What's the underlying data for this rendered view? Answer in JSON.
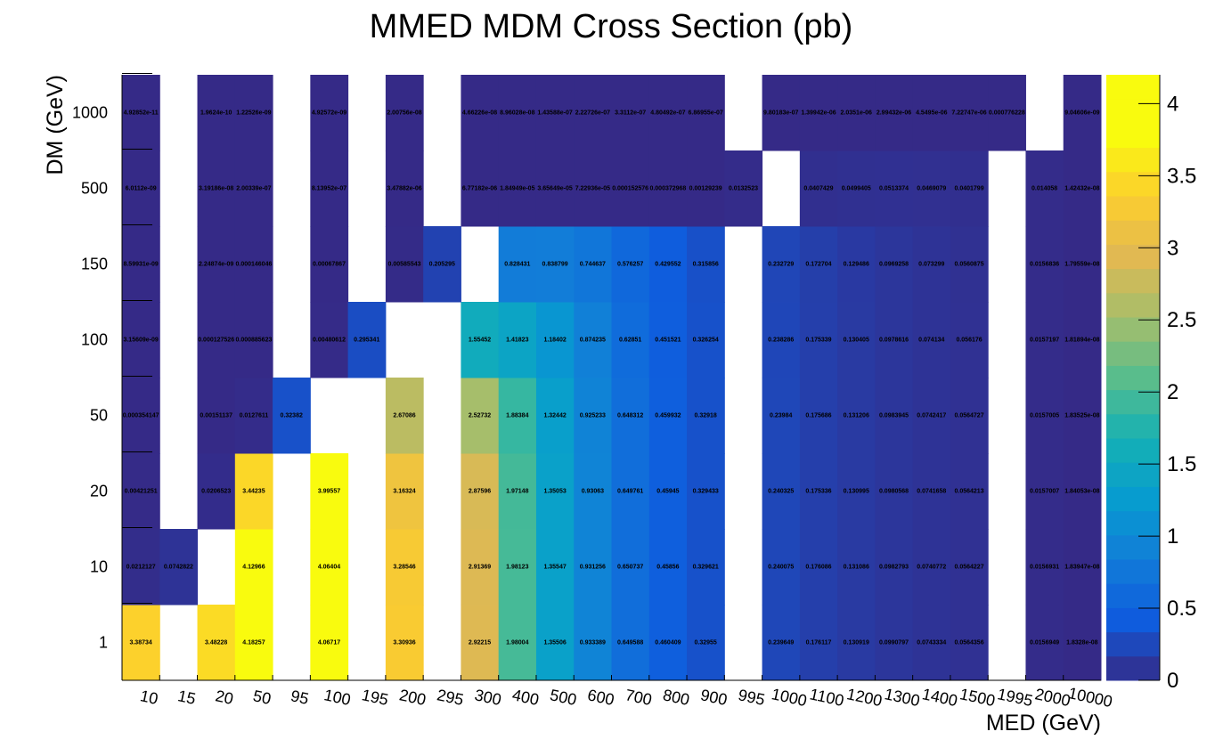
{
  "chart_data": {
    "type": "heatmap",
    "title": "MMED MDM Cross Section (pb)",
    "xlabel": "MED (GeV)",
    "ylabel": "DM (GeV)",
    "x_categories": [
      "10",
      "15",
      "20",
      "50",
      "95",
      "100",
      "195",
      "200",
      "295",
      "300",
      "400",
      "500",
      "600",
      "700",
      "800",
      "900",
      "995",
      "1000",
      "1100",
      "1200",
      "1300",
      "1400",
      "1500",
      "1995",
      "2000",
      "10000"
    ],
    "y_categories": [
      "1",
      "10",
      "20",
      "50",
      "100",
      "150",
      "500",
      "1000"
    ],
    "colorbar": {
      "min": 0,
      "max": 4.2,
      "ticks": [
        "0",
        "0.5",
        "1",
        "1.5",
        "2",
        "2.5",
        "3",
        "3.5",
        "4"
      ]
    },
    "grid": false,
    "cells": [
      {
        "x": "10",
        "y": "1",
        "value": 3.38734,
        "label": "3.38734"
      },
      {
        "x": "20",
        "y": "1",
        "value": 3.48228,
        "label": "3.48228"
      },
      {
        "x": "50",
        "y": "1",
        "value": 4.18257,
        "label": "4.18257"
      },
      {
        "x": "100",
        "y": "1",
        "value": 4.06717,
        "label": "4.06717"
      },
      {
        "x": "200",
        "y": "1",
        "value": 3.30936,
        "label": "3.30936"
      },
      {
        "x": "300",
        "y": "1",
        "value": 2.92215,
        "label": "2.92215"
      },
      {
        "x": "400",
        "y": "1",
        "value": 1.98004,
        "label": "1.98004"
      },
      {
        "x": "500",
        "y": "1",
        "value": 1.35506,
        "label": "1.35506"
      },
      {
        "x": "600",
        "y": "1",
        "value": 0.933389,
        "label": "0.933389"
      },
      {
        "x": "700",
        "y": "1",
        "value": 0.649588,
        "label": "0.649588"
      },
      {
        "x": "800",
        "y": "1",
        "value": 0.460409,
        "label": "0.460409"
      },
      {
        "x": "900",
        "y": "1",
        "value": 0.32955,
        "label": "0.32955"
      },
      {
        "x": "1000",
        "y": "1",
        "value": 0.239649,
        "label": "0.239649"
      },
      {
        "x": "1100",
        "y": "1",
        "value": 0.176117,
        "label": "0.176117"
      },
      {
        "x": "1200",
        "y": "1",
        "value": 0.130919,
        "label": "0.130919"
      },
      {
        "x": "1300",
        "y": "1",
        "value": 0.0990797,
        "label": "0.0990797"
      },
      {
        "x": "1400",
        "y": "1",
        "value": 0.0743334,
        "label": "0.0743334"
      },
      {
        "x": "1500",
        "y": "1",
        "value": 0.0564356,
        "label": "0.0564356"
      },
      {
        "x": "2000",
        "y": "1",
        "value": 0.0156949,
        "label": "0.0156949"
      },
      {
        "x": "10000",
        "y": "1",
        "value": 1.8328e-08,
        "label": "1.8328e-08"
      },
      {
        "x": "10",
        "y": "10",
        "value": 0.0212127,
        "label": "0.0212127"
      },
      {
        "x": "15",
        "y": "10",
        "value": 0.0742822,
        "label": "0.0742822"
      },
      {
        "x": "50",
        "y": "10",
        "value": 4.12966,
        "label": "4.12966"
      },
      {
        "x": "100",
        "y": "10",
        "value": 4.06404,
        "label": "4.06404"
      },
      {
        "x": "200",
        "y": "10",
        "value": 3.28546,
        "label": "3.28546"
      },
      {
        "x": "300",
        "y": "10",
        "value": 2.91369,
        "label": "2.91369"
      },
      {
        "x": "400",
        "y": "10",
        "value": 1.98123,
        "label": "1.98123"
      },
      {
        "x": "500",
        "y": "10",
        "value": 1.35547,
        "label": "1.35547"
      },
      {
        "x": "600",
        "y": "10",
        "value": 0.931256,
        "label": "0.931256"
      },
      {
        "x": "700",
        "y": "10",
        "value": 0.650737,
        "label": "0.650737"
      },
      {
        "x": "800",
        "y": "10",
        "value": 0.45856,
        "label": "0.45856"
      },
      {
        "x": "900",
        "y": "10",
        "value": 0.329621,
        "label": "0.329621"
      },
      {
        "x": "1000",
        "y": "10",
        "value": 0.240075,
        "label": "0.240075"
      },
      {
        "x": "1100",
        "y": "10",
        "value": 0.176086,
        "label": "0.176086"
      },
      {
        "x": "1200",
        "y": "10",
        "value": 0.131086,
        "label": "0.131086"
      },
      {
        "x": "1300",
        "y": "10",
        "value": 0.0982793,
        "label": "0.0982793"
      },
      {
        "x": "1400",
        "y": "10",
        "value": 0.0740772,
        "label": "0.0740772"
      },
      {
        "x": "1500",
        "y": "10",
        "value": 0.0564227,
        "label": "0.0564227"
      },
      {
        "x": "2000",
        "y": "10",
        "value": 0.0156931,
        "label": "0.0156931"
      },
      {
        "x": "10000",
        "y": "10",
        "value": 1.83947e-08,
        "label": "1.83947e-08"
      },
      {
        "x": "10",
        "y": "20",
        "value": 0.00421251,
        "label": "0.00421251"
      },
      {
        "x": "20",
        "y": "20",
        "value": 0.0206523,
        "label": "0.0206523"
      },
      {
        "x": "50",
        "y": "20",
        "value": 3.44235,
        "label": "3.44235"
      },
      {
        "x": "100",
        "y": "20",
        "value": 3.99557,
        "label": "3.99557"
      },
      {
        "x": "200",
        "y": "20",
        "value": 3.16324,
        "label": "3.16324"
      },
      {
        "x": "300",
        "y": "20",
        "value": 2.87596,
        "label": "2.87596"
      },
      {
        "x": "400",
        "y": "20",
        "value": 1.97148,
        "label": "1.97148"
      },
      {
        "x": "500",
        "y": "20",
        "value": 1.35053,
        "label": "1.35053"
      },
      {
        "x": "600",
        "y": "20",
        "value": 0.93063,
        "label": "0.93063"
      },
      {
        "x": "700",
        "y": "20",
        "value": 0.649761,
        "label": "0.649761"
      },
      {
        "x": "800",
        "y": "20",
        "value": 0.45945,
        "label": "0.45945"
      },
      {
        "x": "900",
        "y": "20",
        "value": 0.329433,
        "label": "0.329433"
      },
      {
        "x": "1000",
        "y": "20",
        "value": 0.240325,
        "label": "0.240325"
      },
      {
        "x": "1100",
        "y": "20",
        "value": 0.175336,
        "label": "0.175336"
      },
      {
        "x": "1200",
        "y": "20",
        "value": 0.130995,
        "label": "0.130995"
      },
      {
        "x": "1300",
        "y": "20",
        "value": 0.0980568,
        "label": "0.0980568"
      },
      {
        "x": "1400",
        "y": "20",
        "value": 0.0741658,
        "label": "0.0741658"
      },
      {
        "x": "1500",
        "y": "20",
        "value": 0.0564213,
        "label": "0.0564213"
      },
      {
        "x": "2000",
        "y": "20",
        "value": 0.0157007,
        "label": "0.0157007"
      },
      {
        "x": "10000",
        "y": "20",
        "value": 1.84053e-08,
        "label": "1.84053e-08"
      },
      {
        "x": "10",
        "y": "50",
        "value": 0.000354147,
        "label": "0.000354147"
      },
      {
        "x": "20",
        "y": "50",
        "value": 0.00151137,
        "label": "0.00151137"
      },
      {
        "x": "50",
        "y": "50",
        "value": 0.0127611,
        "label": "0.0127611"
      },
      {
        "x": "95",
        "y": "50",
        "value": 0.32382,
        "label": "0.32382"
      },
      {
        "x": "200",
        "y": "50",
        "value": 2.67086,
        "label": "2.67086"
      },
      {
        "x": "300",
        "y": "50",
        "value": 2.52732,
        "label": "2.52732"
      },
      {
        "x": "400",
        "y": "50",
        "value": 1.88384,
        "label": "1.88384"
      },
      {
        "x": "500",
        "y": "50",
        "value": 1.32442,
        "label": "1.32442"
      },
      {
        "x": "600",
        "y": "50",
        "value": 0.925233,
        "label": "0.925233"
      },
      {
        "x": "700",
        "y": "50",
        "value": 0.648312,
        "label": "0.648312"
      },
      {
        "x": "800",
        "y": "50",
        "value": 0.459932,
        "label": "0.459932"
      },
      {
        "x": "900",
        "y": "50",
        "value": 0.32918,
        "label": "0.32918"
      },
      {
        "x": "1000",
        "y": "50",
        "value": 0.23984,
        "label": "0.23984"
      },
      {
        "x": "1100",
        "y": "50",
        "value": 0.175686,
        "label": "0.175686"
      },
      {
        "x": "1200",
        "y": "50",
        "value": 0.131206,
        "label": "0.131206"
      },
      {
        "x": "1300",
        "y": "50",
        "value": 0.0983945,
        "label": "0.0983945"
      },
      {
        "x": "1400",
        "y": "50",
        "value": 0.0742417,
        "label": "0.0742417"
      },
      {
        "x": "1500",
        "y": "50",
        "value": 0.0564727,
        "label": "0.0564727"
      },
      {
        "x": "2000",
        "y": "50",
        "value": 0.0157005,
        "label": "0.0157005"
      },
      {
        "x": "10000",
        "y": "50",
        "value": 1.83525e-08,
        "label": "1.83525e-08"
      },
      {
        "x": "10",
        "y": "100",
        "value": 3.15609e-09,
        "label": "3.15609e-09"
      },
      {
        "x": "20",
        "y": "100",
        "value": 0.000127526,
        "label": "0.000127526"
      },
      {
        "x": "50",
        "y": "100",
        "value": 0.000885623,
        "label": "0.000885623"
      },
      {
        "x": "100",
        "y": "100",
        "value": 0.00480612,
        "label": "0.00480612"
      },
      {
        "x": "195",
        "y": "100",
        "value": 0.295341,
        "label": "0.295341"
      },
      {
        "x": "300",
        "y": "100",
        "value": 1.55452,
        "label": "1.55452"
      },
      {
        "x": "400",
        "y": "100",
        "value": 1.41823,
        "label": "1.41823"
      },
      {
        "x": "500",
        "y": "100",
        "value": 1.18402,
        "label": "1.18402"
      },
      {
        "x": "600",
        "y": "100",
        "value": 0.874235,
        "label": "0.874235"
      },
      {
        "x": "700",
        "y": "100",
        "value": 0.62851,
        "label": "0.62851"
      },
      {
        "x": "800",
        "y": "100",
        "value": 0.451521,
        "label": "0.451521"
      },
      {
        "x": "900",
        "y": "100",
        "value": 0.326254,
        "label": "0.326254"
      },
      {
        "x": "1000",
        "y": "100",
        "value": 0.238286,
        "label": "0.238286"
      },
      {
        "x": "1100",
        "y": "100",
        "value": 0.175339,
        "label": "0.175339"
      },
      {
        "x": "1200",
        "y": "100",
        "value": 0.130405,
        "label": "0.130405"
      },
      {
        "x": "1300",
        "y": "100",
        "value": 0.0978616,
        "label": "0.0978616"
      },
      {
        "x": "1400",
        "y": "100",
        "value": 0.074134,
        "label": "0.074134"
      },
      {
        "x": "1500",
        "y": "100",
        "value": 0.056176,
        "label": "0.056176"
      },
      {
        "x": "2000",
        "y": "100",
        "value": 0.0157197,
        "label": "0.0157197"
      },
      {
        "x": "10000",
        "y": "100",
        "value": 1.81894e-08,
        "label": "1.81894e-08"
      },
      {
        "x": "10",
        "y": "150",
        "value": 8.59931e-09,
        "label": "8.59931e-09"
      },
      {
        "x": "20",
        "y": "150",
        "value": 2.24874e-09,
        "label": "2.24874e-09"
      },
      {
        "x": "50",
        "y": "150",
        "value": 0.000146046,
        "label": "0.000146046"
      },
      {
        "x": "100",
        "y": "150",
        "value": 0.00067867,
        "label": "0.00067867"
      },
      {
        "x": "200",
        "y": "150",
        "value": 0.00585543,
        "label": "0.00585543"
      },
      {
        "x": "295",
        "y": "150",
        "value": 0.205295,
        "label": "0.205295"
      },
      {
        "x": "400",
        "y": "150",
        "value": 0.828431,
        "label": "0.828431"
      },
      {
        "x": "500",
        "y": "150",
        "value": 0.838799,
        "label": "0.838799"
      },
      {
        "x": "600",
        "y": "150",
        "value": 0.744637,
        "label": "0.744637"
      },
      {
        "x": "700",
        "y": "150",
        "value": 0.576257,
        "label": "0.576257"
      },
      {
        "x": "800",
        "y": "150",
        "value": 0.429552,
        "label": "0.429552"
      },
      {
        "x": "900",
        "y": "150",
        "value": 0.315856,
        "label": "0.315856"
      },
      {
        "x": "1000",
        "y": "150",
        "value": 0.232729,
        "label": "0.232729"
      },
      {
        "x": "1100",
        "y": "150",
        "value": 0.172704,
        "label": "0.172704"
      },
      {
        "x": "1200",
        "y": "150",
        "value": 0.129486,
        "label": "0.129486"
      },
      {
        "x": "1300",
        "y": "150",
        "value": 0.0969258,
        "label": "0.0969258"
      },
      {
        "x": "1400",
        "y": "150",
        "value": 0.073299,
        "label": "0.073299"
      },
      {
        "x": "1500",
        "y": "150",
        "value": 0.0560875,
        "label": "0.0560875"
      },
      {
        "x": "2000",
        "y": "150",
        "value": 0.0156836,
        "label": "0.0156836"
      },
      {
        "x": "10000",
        "y": "150",
        "value": 1.79559e-08,
        "label": "1.79559e-08"
      },
      {
        "x": "10",
        "y": "500",
        "value": 6.0112e-09,
        "label": "6.0112e-09"
      },
      {
        "x": "20",
        "y": "500",
        "value": 3.19186e-08,
        "label": "3.19186e-08"
      },
      {
        "x": "50",
        "y": "500",
        "value": 2.00339e-07,
        "label": "2.00339e-07"
      },
      {
        "x": "100",
        "y": "500",
        "value": 8.13952e-07,
        "label": "8.13952e-07"
      },
      {
        "x": "200",
        "y": "500",
        "value": 3.47882e-06,
        "label": "3.47882e-06"
      },
      {
        "x": "300",
        "y": "500",
        "value": 6.77182e-06,
        "label": "6.77182e-06"
      },
      {
        "x": "400",
        "y": "500",
        "value": 1.84949e-05,
        "label": "1.84949e-05"
      },
      {
        "x": "500",
        "y": "500",
        "value": 3.65649e-05,
        "label": "3.65649e-05"
      },
      {
        "x": "600",
        "y": "500",
        "value": 7.22936e-05,
        "label": "7.22936e-05"
      },
      {
        "x": "700",
        "y": "500",
        "value": 0.000152576,
        "label": "0.000152576"
      },
      {
        "x": "800",
        "y": "500",
        "value": 0.000372968,
        "label": "0.000372968"
      },
      {
        "x": "900",
        "y": "500",
        "value": 0.00129239,
        "label": "0.00129239"
      },
      {
        "x": "995",
        "y": "500",
        "value": 0.0132523,
        "label": "0.0132523"
      },
      {
        "x": "1100",
        "y": "500",
        "value": 0.0407429,
        "label": "0.0407429"
      },
      {
        "x": "1200",
        "y": "500",
        "value": 0.0499405,
        "label": "0.0499405"
      },
      {
        "x": "1300",
        "y": "500",
        "value": 0.0513374,
        "label": "0.0513374"
      },
      {
        "x": "1400",
        "y": "500",
        "value": 0.0469079,
        "label": "0.0469079"
      },
      {
        "x": "1500",
        "y": "500",
        "value": 0.0401799,
        "label": "0.0401799"
      },
      {
        "x": "2000",
        "y": "500",
        "value": 0.014058,
        "label": "0.014058"
      },
      {
        "x": "10000",
        "y": "500",
        "value": 1.42432e-08,
        "label": "1.42432e-08"
      },
      {
        "x": "10",
        "y": "1000",
        "value": 4.92852e-11,
        "label": "4.92852e-11"
      },
      {
        "x": "20",
        "y": "1000",
        "value": 1.9624e-10,
        "label": "1.9624e-10"
      },
      {
        "x": "50",
        "y": "1000",
        "value": 1.22526e-09,
        "label": "1.22526e-09"
      },
      {
        "x": "100",
        "y": "1000",
        "value": 4.92572e-09,
        "label": "4.92572e-09"
      },
      {
        "x": "200",
        "y": "1000",
        "value": 2.00756e-08,
        "label": "2.00756e-08"
      },
      {
        "x": "300",
        "y": "1000",
        "value": 4.66226e-08,
        "label": "4.66226e-08"
      },
      {
        "x": "400",
        "y": "1000",
        "value": 8.96028e-08,
        "label": "8.96028e-08"
      },
      {
        "x": "500",
        "y": "1000",
        "value": 1.43588e-07,
        "label": "1.43588e-07"
      },
      {
        "x": "600",
        "y": "1000",
        "value": 2.22726e-07,
        "label": "2.22726e-07"
      },
      {
        "x": "700",
        "y": "1000",
        "value": 3.3112e-07,
        "label": "3.3112e-07"
      },
      {
        "x": "800",
        "y": "1000",
        "value": 4.80492e-07,
        "label": "4.80492e-07"
      },
      {
        "x": "900",
        "y": "1000",
        "value": 6.86955e-07,
        "label": "6.86955e-07"
      },
      {
        "x": "1000",
        "y": "1000",
        "value": 9.80183e-07,
        "label": "9.80183e-07"
      },
      {
        "x": "1100",
        "y": "1000",
        "value": 1.39942e-06,
        "label": "1.39942e-06"
      },
      {
        "x": "1200",
        "y": "1000",
        "value": 2.0351e-06,
        "label": "2.0351e-06"
      },
      {
        "x": "1300",
        "y": "1000",
        "value": 2.99432e-06,
        "label": "2.99432e-06"
      },
      {
        "x": "1400",
        "y": "1000",
        "value": 4.5495e-06,
        "label": "4.5495e-06"
      },
      {
        "x": "1500",
        "y": "1000",
        "value": 7.22747e-06,
        "label": "7.22747e-06"
      },
      {
        "x": "1995",
        "y": "1000",
        "value": 0.000776228,
        "label": "0.000776228"
      },
      {
        "x": "10000",
        "y": "1000",
        "value": 9.04606e-09,
        "label": "9.04606e-09"
      }
    ]
  }
}
